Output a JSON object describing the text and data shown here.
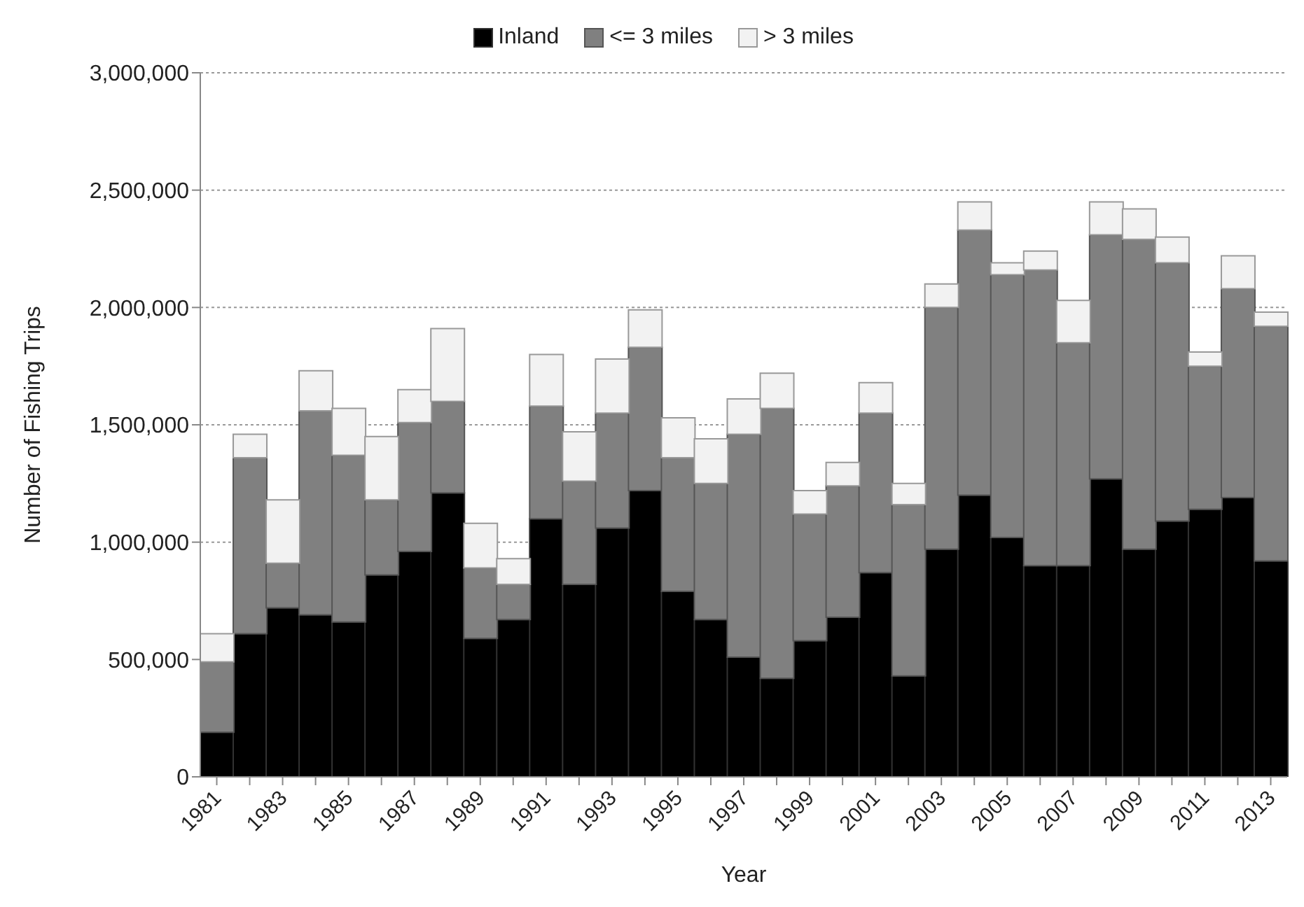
{
  "chart_data": {
    "type": "bar",
    "stacked": true,
    "xlabel": "Year",
    "ylabel": "Number of Fishing Trips",
    "categories": [
      "1981",
      null,
      "1983",
      null,
      "1985",
      null,
      "1987",
      null,
      "1989",
      null,
      "1991",
      null,
      "1993",
      null,
      "1995",
      null,
      "1997",
      null,
      "1999",
      null,
      "2001",
      null,
      "2003",
      null,
      "2005",
      null,
      "2007",
      null,
      "2009",
      null,
      "2011",
      null,
      "2013"
    ],
    "series": [
      {
        "name": "Inland",
        "color": "#000000",
        "values": [
          190000,
          610000,
          720000,
          690000,
          660000,
          860000,
          960000,
          1210000,
          590000,
          670000,
          1100000,
          820000,
          1060000,
          1220000,
          790000,
          670000,
          510000,
          420000,
          580000,
          680000,
          870000,
          430000,
          970000,
          1200000,
          1020000,
          900000,
          900000,
          1270000,
          970000,
          1090000,
          1140000,
          1190000,
          920000
        ]
      },
      {
        "name": "<= 3 miles",
        "color": "#808080",
        "values": [
          300000,
          750000,
          190000,
          870000,
          710000,
          320000,
          550000,
          390000,
          300000,
          150000,
          480000,
          440000,
          490000,
          610000,
          570000,
          580000,
          950000,
          1150000,
          540000,
          560000,
          680000,
          730000,
          1030000,
          1130000,
          1120000,
          1260000,
          950000,
          1040000,
          1320000,
          1100000,
          610000,
          890000,
          1000000
        ]
      },
      {
        "name": "> 3 miles",
        "color": "#f2f2f2",
        "values": [
          120000,
          100000,
          270000,
          170000,
          200000,
          270000,
          140000,
          310000,
          190000,
          110000,
          220000,
          210000,
          230000,
          160000,
          170000,
          190000,
          150000,
          150000,
          100000,
          100000,
          130000,
          90000,
          100000,
          120000,
          50000,
          80000,
          180000,
          140000,
          130000,
          110000,
          60000,
          140000,
          60000
        ]
      }
    ],
    "ylim": [
      0,
      3000000
    ],
    "yticks": [
      0,
      {
        "value": 500000,
        "label": "500,000"
      },
      {
        "value": 1000000,
        "label": "1,000,000"
      },
      {
        "value": 1500000,
        "label": "1,500,000"
      },
      {
        "value": 2000000,
        "label": "2,000,000"
      },
      {
        "value": 2500000,
        "label": "2,500,000"
      },
      {
        "value": 3000000,
        "label": "3,000,000"
      }
    ],
    "grid": "y",
    "legend": "top"
  }
}
